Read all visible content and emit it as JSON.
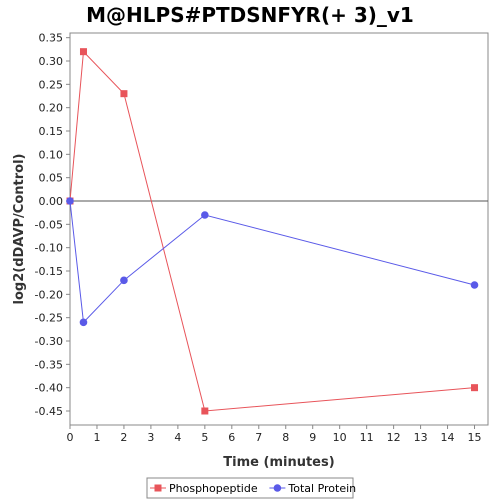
{
  "chart_data": {
    "type": "line",
    "title": "M@HLPS#PTDSNFYR(+ 3)_v1",
    "xlabel": "Time (minutes)",
    "ylabel": "log2(dDAVP/Control)",
    "xlim": [
      0,
      15.5
    ],
    "ylim": [
      -0.48,
      0.36
    ],
    "xticks": [
      0,
      1,
      2,
      3,
      4,
      5,
      6,
      7,
      8,
      9,
      10,
      11,
      12,
      13,
      14,
      15
    ],
    "yticks": [
      0.35,
      0.3,
      0.25,
      0.2,
      0.15,
      0.1,
      0.05,
      0.0,
      -0.05,
      -0.1,
      -0.15,
      -0.2,
      -0.25,
      -0.3,
      -0.35,
      -0.4,
      -0.45
    ],
    "ytick_labels": [
      "0.35",
      "0.30",
      "0.25",
      "0.20",
      "0.15",
      "0.10",
      "0.05",
      "0.00",
      "-0.05",
      "-0.10",
      "-0.15",
      "-0.20",
      "-0.25",
      "-0.30",
      "-0.35",
      "-0.40",
      "-0.45"
    ],
    "zero_line": true,
    "grid": false,
    "legend_position": "bottom",
    "series": [
      {
        "name": "Phosphopeptide",
        "color": "#e8545a",
        "marker": "square",
        "x": [
          0,
          0.5,
          2,
          5,
          15
        ],
        "y": [
          0.0,
          0.32,
          0.23,
          -0.45,
          -0.4
        ]
      },
      {
        "name": "Total Protein",
        "color": "#5a5ae8",
        "marker": "circle",
        "x": [
          0,
          0.5,
          2,
          5,
          15
        ],
        "y": [
          0.0,
          -0.26,
          -0.17,
          -0.03,
          -0.18
        ]
      }
    ]
  }
}
